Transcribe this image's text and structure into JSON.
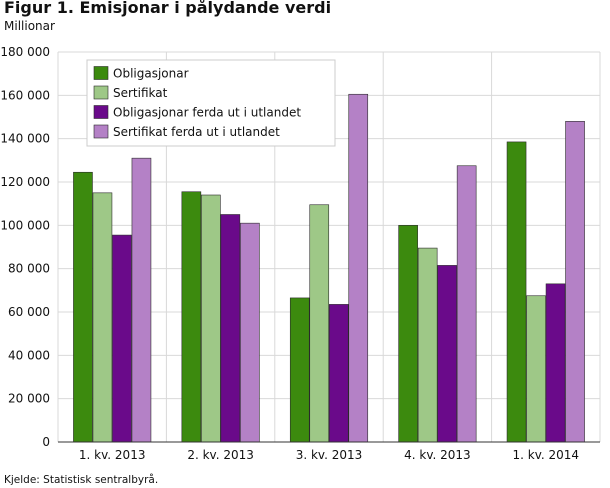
{
  "title": "Figur 1. Emisjonar i pålydande verdi",
  "unit_label": "Millionar",
  "source": "Kjelde: Statistisk sentralbyrå.",
  "chart_data": {
    "type": "bar",
    "title": "Figur 1. Emisjonar i pålydande verdi",
    "ylabel": "Millionar",
    "xlabel": "",
    "categories": [
      "1. kv. 2013",
      "2. kv. 2013",
      "3. kv. 2013",
      "4. kv. 2013",
      "1. kv. 2014"
    ],
    "ylim": [
      0,
      180000
    ],
    "yticks": [
      0,
      20000,
      40000,
      60000,
      80000,
      100000,
      120000,
      140000,
      160000,
      180000
    ],
    "ytick_labels": [
      "0",
      "20 000",
      "40 000",
      "60 000",
      "80 000",
      "100 000",
      "120 000",
      "140 000",
      "160 000",
      "180 000"
    ],
    "grid": true,
    "legend_position": "top-left",
    "series": [
      {
        "name": "Obligasjonar",
        "color": "#3c8a0e",
        "values": [
          124500,
          115500,
          66500,
          100000,
          138500
        ]
      },
      {
        "name": "Sertifikat",
        "color": "#9ec887",
        "values": [
          115000,
          114000,
          109500,
          89500,
          67500
        ]
      },
      {
        "name": "Obligasjonar ferda ut i utlandet",
        "color": "#6a0a8a",
        "values": [
          95500,
          105000,
          63500,
          81500,
          73000
        ]
      },
      {
        "name": "Sertifikat ferda ut i utlandet",
        "color": "#b481c6",
        "values": [
          131000,
          101000,
          160500,
          127500,
          148000
        ]
      }
    ]
  }
}
